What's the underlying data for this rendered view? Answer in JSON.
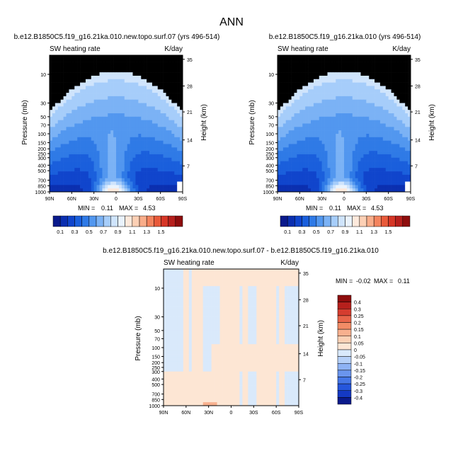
{
  "page_title": "ANN",
  "colors": {
    "scale": [
      "#0a1a8c",
      "#0b2fb0",
      "#1045cc",
      "#1a5fdc",
      "#2f7ae6",
      "#5297ef",
      "#7bb2f5",
      "#a6cdfa",
      "#cfe4fc",
      "#eaf3fd",
      "#fde9dc",
      "#fcd0b5",
      "#f9ad8a",
      "#f3845e",
      "#e85a3a",
      "#d63626",
      "#b61f1c",
      "#8e0d0d"
    ],
    "diff": [
      "#0a1a8c",
      "#1439c4",
      "#2556dc",
      "#4576e6",
      "#6a95ee",
      "#8db2f4",
      "#b5d0f8",
      "#d9e9fb",
      "#fde6d4",
      "#fbd0b4",
      "#f8b08e",
      "#f28c66",
      "#e8654a",
      "#d53d2f",
      "#b6201c",
      "#8e0d0d"
    ]
  },
  "chart_data": [
    {
      "type": "heatmap",
      "title": "b.e12.B1850C5.f19_g16.21ka.010.new.topo.surf.07 (yrs 496-514)",
      "left_label": "SW heating rate",
      "right_label": "K/day",
      "ylabel": "Pressure (mb)",
      "ylabel_right": "Height (km)",
      "x_ticks": [
        "90N",
        "60N",
        "30N",
        "0",
        "30S",
        "60S",
        "90S"
      ],
      "y_ticks": [
        "10",
        "30",
        "50",
        "70",
        "100",
        "150",
        "200",
        "250",
        "300",
        "400",
        "500",
        "700",
        "850",
        "1000"
      ],
      "height_ticks": [
        "35",
        "28",
        "21",
        "14",
        "7"
      ],
      "min_label": "MIN =",
      "min": "0.11",
      "max_label": "MAX =",
      "max": "4.53",
      "colorbar_labels": [
        "0.1",
        "0.3",
        "0.5",
        "0.7",
        "0.9",
        "1.1",
        "1.3",
        "1.5"
      ]
    },
    {
      "type": "heatmap",
      "title": "b.e12.B1850C5.f19_g16.21ka.010 (yrs 496-514)",
      "left_label": "SW heating rate",
      "right_label": "K/day",
      "ylabel": "Pressure (mb)",
      "ylabel_right": "Height (km)",
      "x_ticks": [
        "90N",
        "60N",
        "30N",
        "0",
        "30S",
        "60S",
        "90S"
      ],
      "y_ticks": [
        "10",
        "30",
        "50",
        "70",
        "100",
        "150",
        "200",
        "250",
        "300",
        "400",
        "500",
        "700",
        "850",
        "1000"
      ],
      "height_ticks": [
        "35",
        "28",
        "21",
        "14",
        "7"
      ],
      "min_label": "MIN =",
      "min": "0.11",
      "max_label": "MAX =",
      "max": "4.53",
      "colorbar_labels": [
        "0.1",
        "0.3",
        "0.5",
        "0.7",
        "0.9",
        "1.1",
        "1.3",
        "1.5"
      ]
    },
    {
      "type": "heatmap",
      "title": "b.e12.B1850C5.f19_g16.21ka.010.new.topo.surf.07 - b.e12.B1850C5.f19_g16.21ka.010",
      "left_label": "SW heating rate",
      "right_label": "K/day",
      "ylabel": "Pressure (mb)",
      "ylabel_right": "Height (km)",
      "x_ticks": [
        "90N",
        "60N",
        "30N",
        "0",
        "30S",
        "60S",
        "90S"
      ],
      "y_ticks": [
        "10",
        "30",
        "50",
        "70",
        "100",
        "150",
        "200",
        "250",
        "300",
        "400",
        "500",
        "700",
        "850",
        "1000"
      ],
      "height_ticks": [
        "35",
        "28",
        "21",
        "14",
        "7"
      ],
      "min_label": "MIN =",
      "min": "-0.02",
      "max_label": "MAX =",
      "max": "0.11",
      "colorbar_labels": [
        "0.4",
        "0.3",
        "0.25",
        "0.2",
        "0.15",
        "0.1",
        "0.05",
        "0",
        "-0.05",
        "-0.1",
        "-0.15",
        "-0.2",
        "-0.25",
        "-0.3",
        "-0.4"
      ]
    }
  ]
}
